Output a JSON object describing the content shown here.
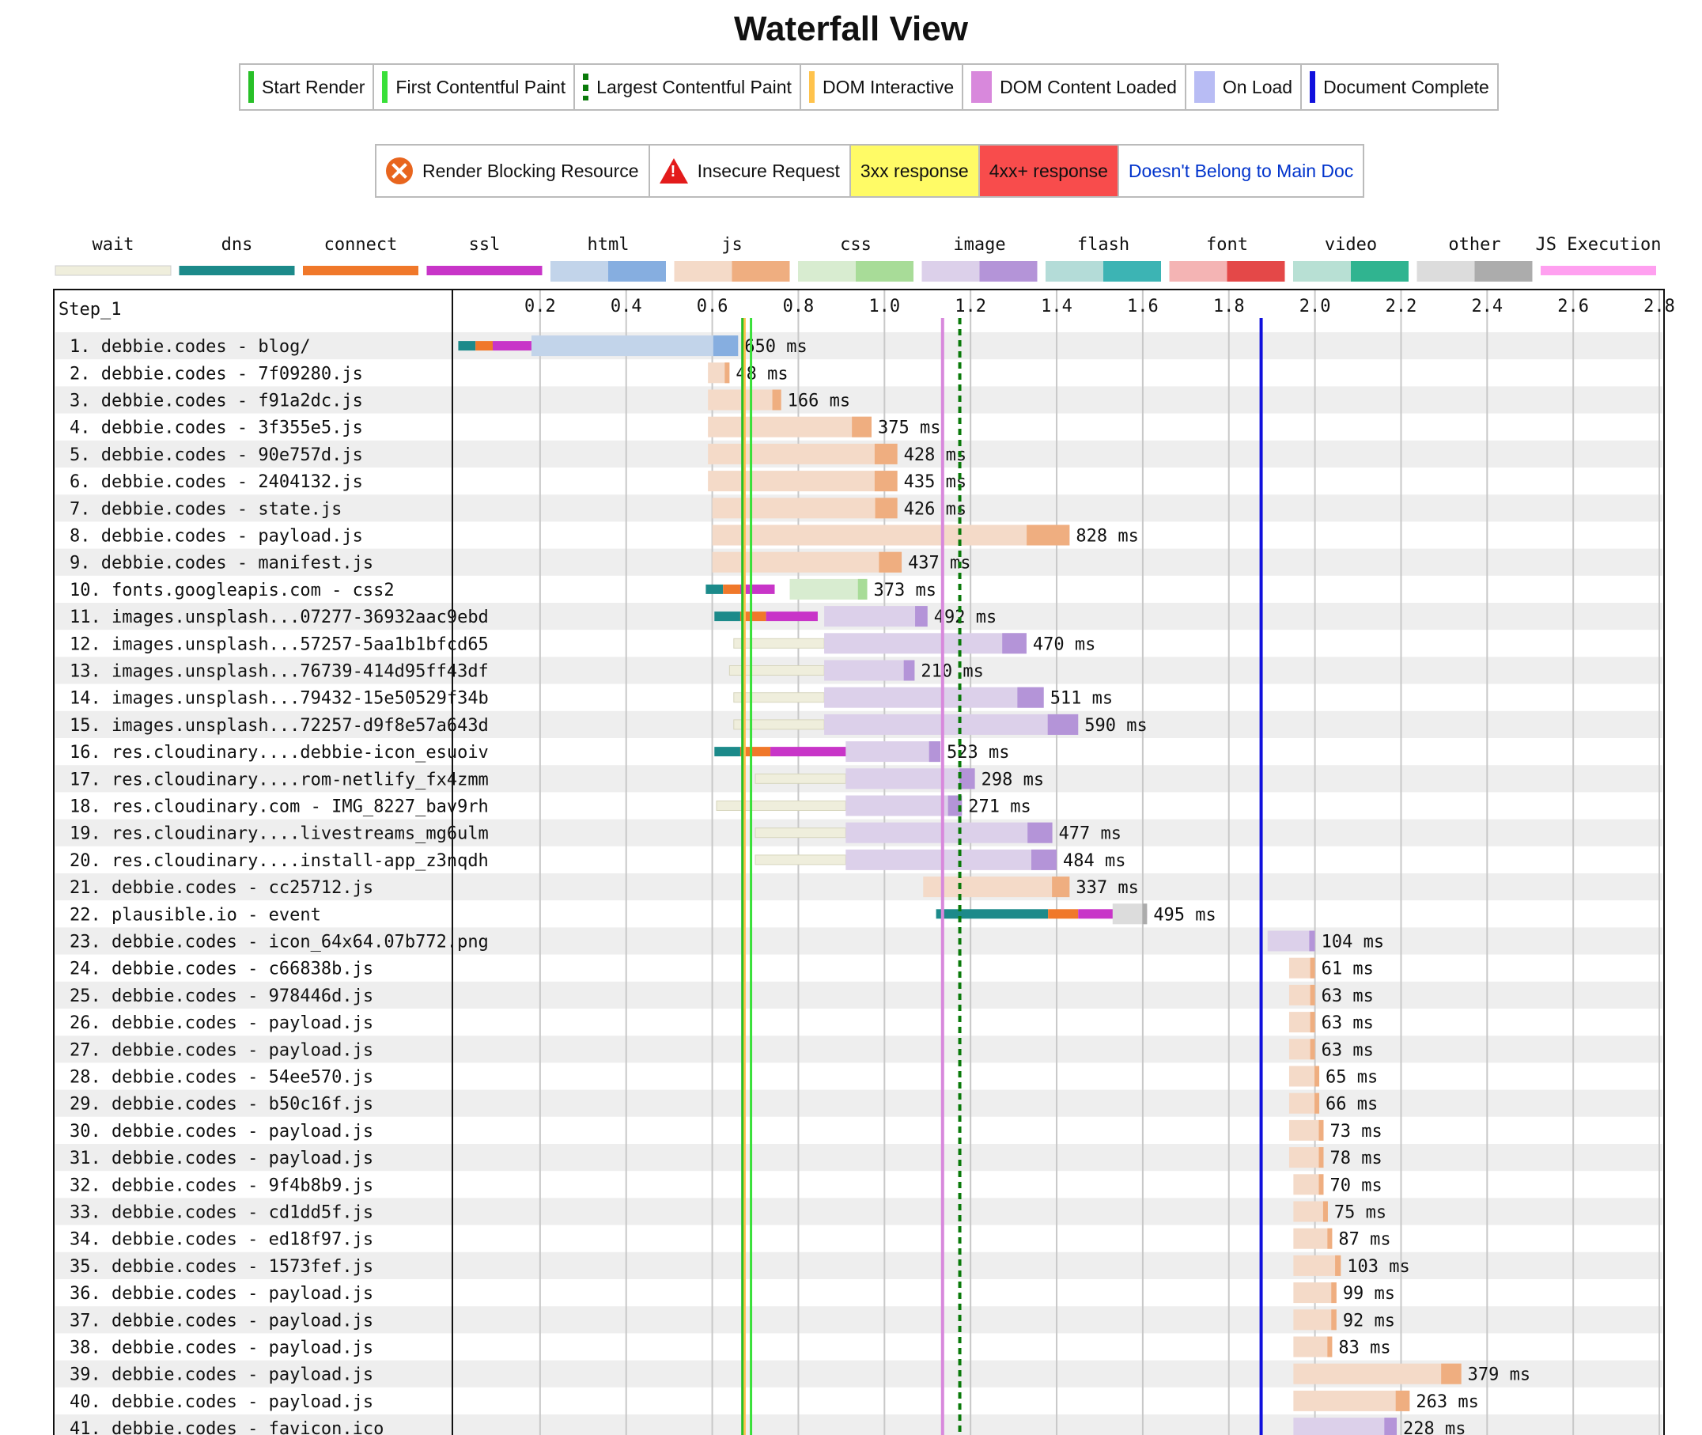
{
  "page_title": "Waterfall View",
  "legend_markers": [
    {
      "label": "Start Render",
      "color": "#28c028",
      "style": "solid"
    },
    {
      "label": "First Contentful Paint",
      "color": "#39e039",
      "style": "solid"
    },
    {
      "label": "Largest Contentful Paint",
      "color": "#0a7a0a",
      "style": "dashed"
    },
    {
      "label": "DOM Interactive",
      "color": "#ffc34c",
      "style": "solid"
    },
    {
      "label": "DOM Content Loaded",
      "color": "#d888dc",
      "style": "block"
    },
    {
      "label": "On Load",
      "color": "#b8bcf4",
      "style": "block"
    },
    {
      "label": "Document Complete",
      "color": "#1010dd",
      "style": "solid"
    }
  ],
  "legend_status": {
    "render_blocking": "Render Blocking Resource",
    "insecure": "Insecure Request",
    "r3xx": "3xx response",
    "r4xx": "4xx+ response",
    "not_main": "Doesn't Belong to Main Doc"
  },
  "chart_data": {
    "type": "waterfall",
    "title": "Waterfall View",
    "step_label": "Step_1",
    "xlim": [
      0,
      2.8
    ],
    "x_ticks": [
      0.2,
      0.4,
      0.6,
      0.8,
      1.0,
      1.2,
      1.4,
      1.6,
      1.8,
      2.0,
      2.2,
      2.4,
      2.6,
      2.8
    ],
    "tick_labels": [
      "0.2",
      "0.4",
      "0.6",
      "0.8",
      "1.0",
      "1.2",
      "1.4",
      "1.6",
      "1.8",
      "2.0",
      "2.2",
      "2.4",
      "2.6",
      "2.8"
    ],
    "timing_legend": [
      {
        "name": "wait",
        "light": "#efeedc",
        "dark": "#d8d7bd"
      },
      {
        "name": "dns",
        "light": "#1c8a8a",
        "dark": "#1c8a8a"
      },
      {
        "name": "connect",
        "light": "#f0782a",
        "dark": "#f0782a"
      },
      {
        "name": "ssl",
        "light": "#c835c8",
        "dark": "#c835c8"
      },
      {
        "name": "html",
        "light": "#c2d4ea",
        "dark": "#86aee0"
      },
      {
        "name": "js",
        "light": "#f4dac8",
        "dark": "#efae80"
      },
      {
        "name": "css",
        "light": "#d8ecd0",
        "dark": "#a8dc98"
      },
      {
        "name": "image",
        "light": "#dcd0ea",
        "dark": "#b494d8"
      },
      {
        "name": "flash",
        "light": "#b4dcd8",
        "dark": "#3cb4b4"
      },
      {
        "name": "font",
        "light": "#f4b4b4",
        "dark": "#e44848"
      },
      {
        "name": "video",
        "light": "#b8e0d4",
        "dark": "#30b490"
      },
      {
        "name": "other",
        "light": "#dcdcdc",
        "dark": "#acacac"
      },
      {
        "name": "JS Execution",
        "light": "#ffa0f0",
        "dark": "#ffa0f0"
      }
    ],
    "markers": {
      "start_render": 0.67,
      "first_contentful_paint": 0.69,
      "largest_contentful_paint": 1.175,
      "dom_interactive": 0.675,
      "dom_content_loaded": 1.135,
      "on_load": null,
      "document_complete": 1.875
    },
    "requests": [
      {
        "label": "1. debbie.codes - blog/",
        "type": "html",
        "start": 0.01,
        "dns": 0.04,
        "connect": 0.04,
        "ssl": 0.09,
        "wait": 0,
        "download_start": 0.18,
        "end": 0.66,
        "duration": "650 ms"
      },
      {
        "label": "2. debbie.codes - 7f09280.js",
        "type": "js",
        "start": 0.59,
        "wait": 0,
        "download_start": 0.59,
        "end": 0.64,
        "duration": "48 ms"
      },
      {
        "label": "3. debbie.codes - f91a2dc.js",
        "type": "js",
        "start": 0.59,
        "wait": 0,
        "download_start": 0.59,
        "end": 0.76,
        "duration": "166 ms"
      },
      {
        "label": "4. debbie.codes - 3f355e5.js",
        "type": "js",
        "start": 0.59,
        "wait": 0,
        "download_start": 0.59,
        "end": 0.97,
        "duration": "375 ms"
      },
      {
        "label": "5. debbie.codes - 90e757d.js",
        "type": "js",
        "start": 0.59,
        "wait": 0,
        "download_start": 0.59,
        "end": 1.03,
        "duration": "428 ms"
      },
      {
        "label": "6. debbie.codes - 2404132.js",
        "type": "js",
        "start": 0.59,
        "wait": 0,
        "download_start": 0.59,
        "end": 1.03,
        "duration": "435 ms"
      },
      {
        "label": "7. debbie.codes - state.js",
        "type": "js",
        "start": 0.6,
        "wait": 0,
        "download_start": 0.6,
        "end": 1.03,
        "duration": "426 ms"
      },
      {
        "label": "8. debbie.codes - payload.js",
        "type": "js",
        "start": 0.6,
        "wait": 0,
        "download_start": 0.6,
        "end": 1.43,
        "duration": "828 ms"
      },
      {
        "label": "9. debbie.codes - manifest.js",
        "type": "js",
        "start": 0.6,
        "wait": 0,
        "download_start": 0.6,
        "end": 1.04,
        "duration": "437 ms"
      },
      {
        "label": "10. fonts.googleapis.com - css2",
        "type": "css",
        "start": 0.585,
        "dns": 0.04,
        "connect": 0.04,
        "ssl": 0.08,
        "wait": 0,
        "download_start": 0.78,
        "end": 0.96,
        "duration": "373 ms"
      },
      {
        "label": "11. images.unsplash...07277-36932aac9ebd",
        "type": "image",
        "start": 0.605,
        "dns": 0.06,
        "connect": 0.06,
        "ssl": 0.12,
        "wait": 0,
        "download_start": 0.86,
        "end": 1.1,
        "duration": "492 ms"
      },
      {
        "label": "12. images.unsplash...57257-5aa1b1bfcd65",
        "type": "image",
        "start": 0.65,
        "wait": 0.21,
        "download_start": 0.86,
        "end": 1.33,
        "duration": "470 ms"
      },
      {
        "label": "13. images.unsplash...76739-414d95ff43df",
        "type": "image",
        "start": 0.64,
        "wait": 0.22,
        "download_start": 0.86,
        "end": 1.07,
        "duration": "210 ms"
      },
      {
        "label": "14. images.unsplash...79432-15e50529f34b",
        "type": "image",
        "start": 0.65,
        "wait": 0.21,
        "download_start": 0.86,
        "end": 1.37,
        "duration": "511 ms"
      },
      {
        "label": "15. images.unsplash...72257-d9f8e57a643d",
        "type": "image",
        "start": 0.65,
        "wait": 0.21,
        "download_start": 0.86,
        "end": 1.45,
        "duration": "590 ms"
      },
      {
        "label": "16. res.cloudinary....debbie-icon_esuoiv",
        "type": "image",
        "start": 0.605,
        "dns": 0.06,
        "connect": 0.07,
        "ssl": 0.18,
        "wait": 0,
        "download_start": 0.91,
        "end": 1.13,
        "duration": "523 ms"
      },
      {
        "label": "17. res.cloudinary....rom-netlify_fx4zmm",
        "type": "image",
        "start": 0.7,
        "wait": 0.21,
        "download_start": 0.91,
        "end": 1.21,
        "duration": "298 ms"
      },
      {
        "label": "18. res.cloudinary.com - IMG_8227_bav9rh",
        "type": "image",
        "start": 0.61,
        "wait": 0.3,
        "download_start": 0.91,
        "end": 1.18,
        "duration": "271 ms"
      },
      {
        "label": "19. res.cloudinary....livestreams_mg6ulm",
        "type": "image",
        "start": 0.7,
        "wait": 0.21,
        "download_start": 0.91,
        "end": 1.39,
        "duration": "477 ms"
      },
      {
        "label": "20. res.cloudinary....install-app_z3nqdh",
        "type": "image",
        "start": 0.7,
        "wait": 0.21,
        "download_start": 0.91,
        "end": 1.4,
        "duration": "484 ms"
      },
      {
        "label": "21. debbie.codes - cc25712.js",
        "type": "js",
        "start": 1.09,
        "wait": 0,
        "download_start": 1.09,
        "end": 1.43,
        "duration": "337 ms"
      },
      {
        "label": "22. plausible.io - event",
        "type": "other",
        "start": 1.12,
        "dns": 0.26,
        "connect": 0.07,
        "ssl": 0.16,
        "wait": 0,
        "download_start": 1.53,
        "end": 1.61,
        "duration": "495 ms"
      },
      {
        "label": "23. debbie.codes - icon_64x64.07b772.png",
        "type": "image",
        "start": 1.89,
        "wait": 0,
        "download_start": 1.89,
        "end": 2.0,
        "duration": "104 ms"
      },
      {
        "label": "24. debbie.codes - c66838b.js",
        "type": "js",
        "start": 1.94,
        "wait": 0,
        "download_start": 1.94,
        "end": 2.0,
        "duration": "61 ms"
      },
      {
        "label": "25. debbie.codes - 978446d.js",
        "type": "js",
        "start": 1.94,
        "wait": 0,
        "download_start": 1.94,
        "end": 2.0,
        "duration": "63 ms"
      },
      {
        "label": "26. debbie.codes - payload.js",
        "type": "js",
        "start": 1.94,
        "wait": 0,
        "download_start": 1.94,
        "end": 2.0,
        "duration": "63 ms"
      },
      {
        "label": "27. debbie.codes - payload.js",
        "type": "js",
        "start": 1.94,
        "wait": 0,
        "download_start": 1.94,
        "end": 2.0,
        "duration": "63 ms"
      },
      {
        "label": "28. debbie.codes - 54ee570.js",
        "type": "js",
        "start": 1.94,
        "wait": 0,
        "download_start": 1.94,
        "end": 2.01,
        "duration": "65 ms"
      },
      {
        "label": "29. debbie.codes - b50c16f.js",
        "type": "js",
        "start": 1.94,
        "wait": 0,
        "download_start": 1.94,
        "end": 2.01,
        "duration": "66 ms"
      },
      {
        "label": "30. debbie.codes - payload.js",
        "type": "js",
        "start": 1.94,
        "wait": 0,
        "download_start": 1.94,
        "end": 2.02,
        "duration": "73 ms"
      },
      {
        "label": "31. debbie.codes - payload.js",
        "type": "js",
        "start": 1.94,
        "wait": 0,
        "download_start": 1.94,
        "end": 2.02,
        "duration": "78 ms"
      },
      {
        "label": "32. debbie.codes - 9f4b8b9.js",
        "type": "js",
        "start": 1.95,
        "wait": 0,
        "download_start": 1.95,
        "end": 2.02,
        "duration": "70 ms"
      },
      {
        "label": "33. debbie.codes - cd1dd5f.js",
        "type": "js",
        "start": 1.95,
        "wait": 0,
        "download_start": 1.95,
        "end": 2.03,
        "duration": "75 ms"
      },
      {
        "label": "34. debbie.codes - ed18f97.js",
        "type": "js",
        "start": 1.95,
        "wait": 0,
        "download_start": 1.95,
        "end": 2.04,
        "duration": "87 ms"
      },
      {
        "label": "35. debbie.codes - 1573fef.js",
        "type": "js",
        "start": 1.95,
        "wait": 0,
        "download_start": 1.95,
        "end": 2.06,
        "duration": "103 ms"
      },
      {
        "label": "36. debbie.codes - payload.js",
        "type": "js",
        "start": 1.95,
        "wait": 0,
        "download_start": 1.95,
        "end": 2.05,
        "duration": "99 ms"
      },
      {
        "label": "37. debbie.codes - payload.js",
        "type": "js",
        "start": 1.95,
        "wait": 0,
        "download_start": 1.95,
        "end": 2.05,
        "duration": "92 ms"
      },
      {
        "label": "38. debbie.codes - payload.js",
        "type": "js",
        "start": 1.95,
        "wait": 0,
        "download_start": 1.95,
        "end": 2.04,
        "duration": "83 ms"
      },
      {
        "label": "39. debbie.codes - payload.js",
        "type": "js",
        "start": 1.95,
        "wait": 0,
        "download_start": 1.95,
        "end": 2.34,
        "duration": "379 ms"
      },
      {
        "label": "40. debbie.codes - payload.js",
        "type": "js",
        "start": 1.95,
        "wait": 0,
        "download_start": 1.95,
        "end": 2.22,
        "duration": "263 ms"
      },
      {
        "label": "41. debbie.codes - favicon.ico",
        "type": "image",
        "start": 1.95,
        "wait": 0,
        "download_start": 1.95,
        "end": 2.19,
        "duration": "228 ms"
      }
    ]
  }
}
